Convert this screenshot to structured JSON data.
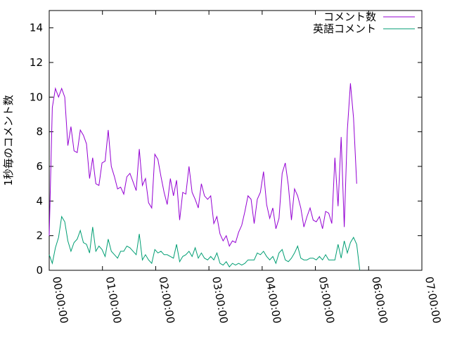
{
  "chart_data": {
    "type": "line",
    "title": "",
    "xlabel": "",
    "ylabel": "1秒毎のコメント数",
    "xlim_seconds": [
      0,
      25200
    ],
    "ylim": [
      0,
      15
    ],
    "y_ticks": [
      0,
      2,
      4,
      6,
      8,
      10,
      12,
      14
    ],
    "x_ticks": [
      "00:00:00",
      "01:00:00",
      "02:00:00",
      "03:00:00",
      "04:00:00",
      "05:00:00",
      "06:00:00",
      "07:00:00"
    ],
    "grid": false,
    "legend_position": "top-right",
    "series": [
      {
        "name": "コメント数",
        "color": "#9400d3",
        "x_step_seconds": 210,
        "values": [
          2.0,
          9.4,
          10.5,
          10.0,
          10.5,
          10.0,
          7.2,
          8.3,
          6.9,
          6.8,
          8.1,
          7.8,
          7.3,
          5.3,
          6.5,
          5.0,
          4.9,
          6.2,
          6.3,
          8.1,
          6.0,
          5.4,
          4.7,
          4.8,
          4.4,
          5.4,
          5.6,
          5.1,
          4.6,
          7.0,
          4.9,
          5.3,
          3.9,
          3.6,
          6.7,
          6.4,
          5.4,
          4.5,
          3.8,
          5.3,
          4.3,
          5.2,
          2.9,
          4.5,
          4.4,
          6.0,
          4.5,
          4.1,
          3.6,
          5.0,
          4.3,
          4.1,
          4.3,
          2.7,
          3.1,
          2.1,
          1.7,
          2.0,
          1.4,
          1.7,
          1.6,
          2.2,
          2.6,
          3.4,
          4.3,
          4.1,
          2.7,
          4.1,
          4.5,
          5.7,
          3.8,
          3.0,
          3.6,
          2.4,
          3.0,
          5.6,
          6.2,
          4.9,
          2.9,
          4.7,
          4.3,
          3.6,
          2.5,
          3.1,
          3.6,
          2.9,
          2.8,
          3.1,
          2.4,
          3.4,
          3.3,
          2.7,
          6.5,
          3.7,
          7.7,
          2.5,
          8.1,
          10.8,
          8.8,
          5.0
        ]
      },
      {
        "name": "英語コメント",
        "color": "#009e73",
        "x_step_seconds": 210,
        "values": [
          0.9,
          0.4,
          1.3,
          1.9,
          3.1,
          2.8,
          1.7,
          1.1,
          1.6,
          1.8,
          2.3,
          1.6,
          1.5,
          1.0,
          2.5,
          1.1,
          1.4,
          1.2,
          0.8,
          1.8,
          1.1,
          0.9,
          0.7,
          1.1,
          1.1,
          1.4,
          1.3,
          1.1,
          0.9,
          2.1,
          0.6,
          0.9,
          0.6,
          0.4,
          1.2,
          1.0,
          1.1,
          0.9,
          0.9,
          0.8,
          0.7,
          1.5,
          0.5,
          0.8,
          0.9,
          1.1,
          0.8,
          1.3,
          0.7,
          1.0,
          0.7,
          0.6,
          0.8,
          0.6,
          1.0,
          0.4,
          0.3,
          0.5,
          0.2,
          0.4,
          0.3,
          0.4,
          0.3,
          0.4,
          0.6,
          0.6,
          0.6,
          1.0,
          0.9,
          1.1,
          0.8,
          0.6,
          0.8,
          0.4,
          1.0,
          1.2,
          0.6,
          0.5,
          0.7,
          1.0,
          1.4,
          0.7,
          0.6,
          0.6,
          0.7,
          0.7,
          0.6,
          0.8,
          0.6,
          0.9,
          0.6,
          0.6,
          0.6,
          1.5,
          0.7,
          1.7,
          1.0,
          1.6,
          1.9,
          1.5,
          0.0
        ]
      }
    ]
  }
}
